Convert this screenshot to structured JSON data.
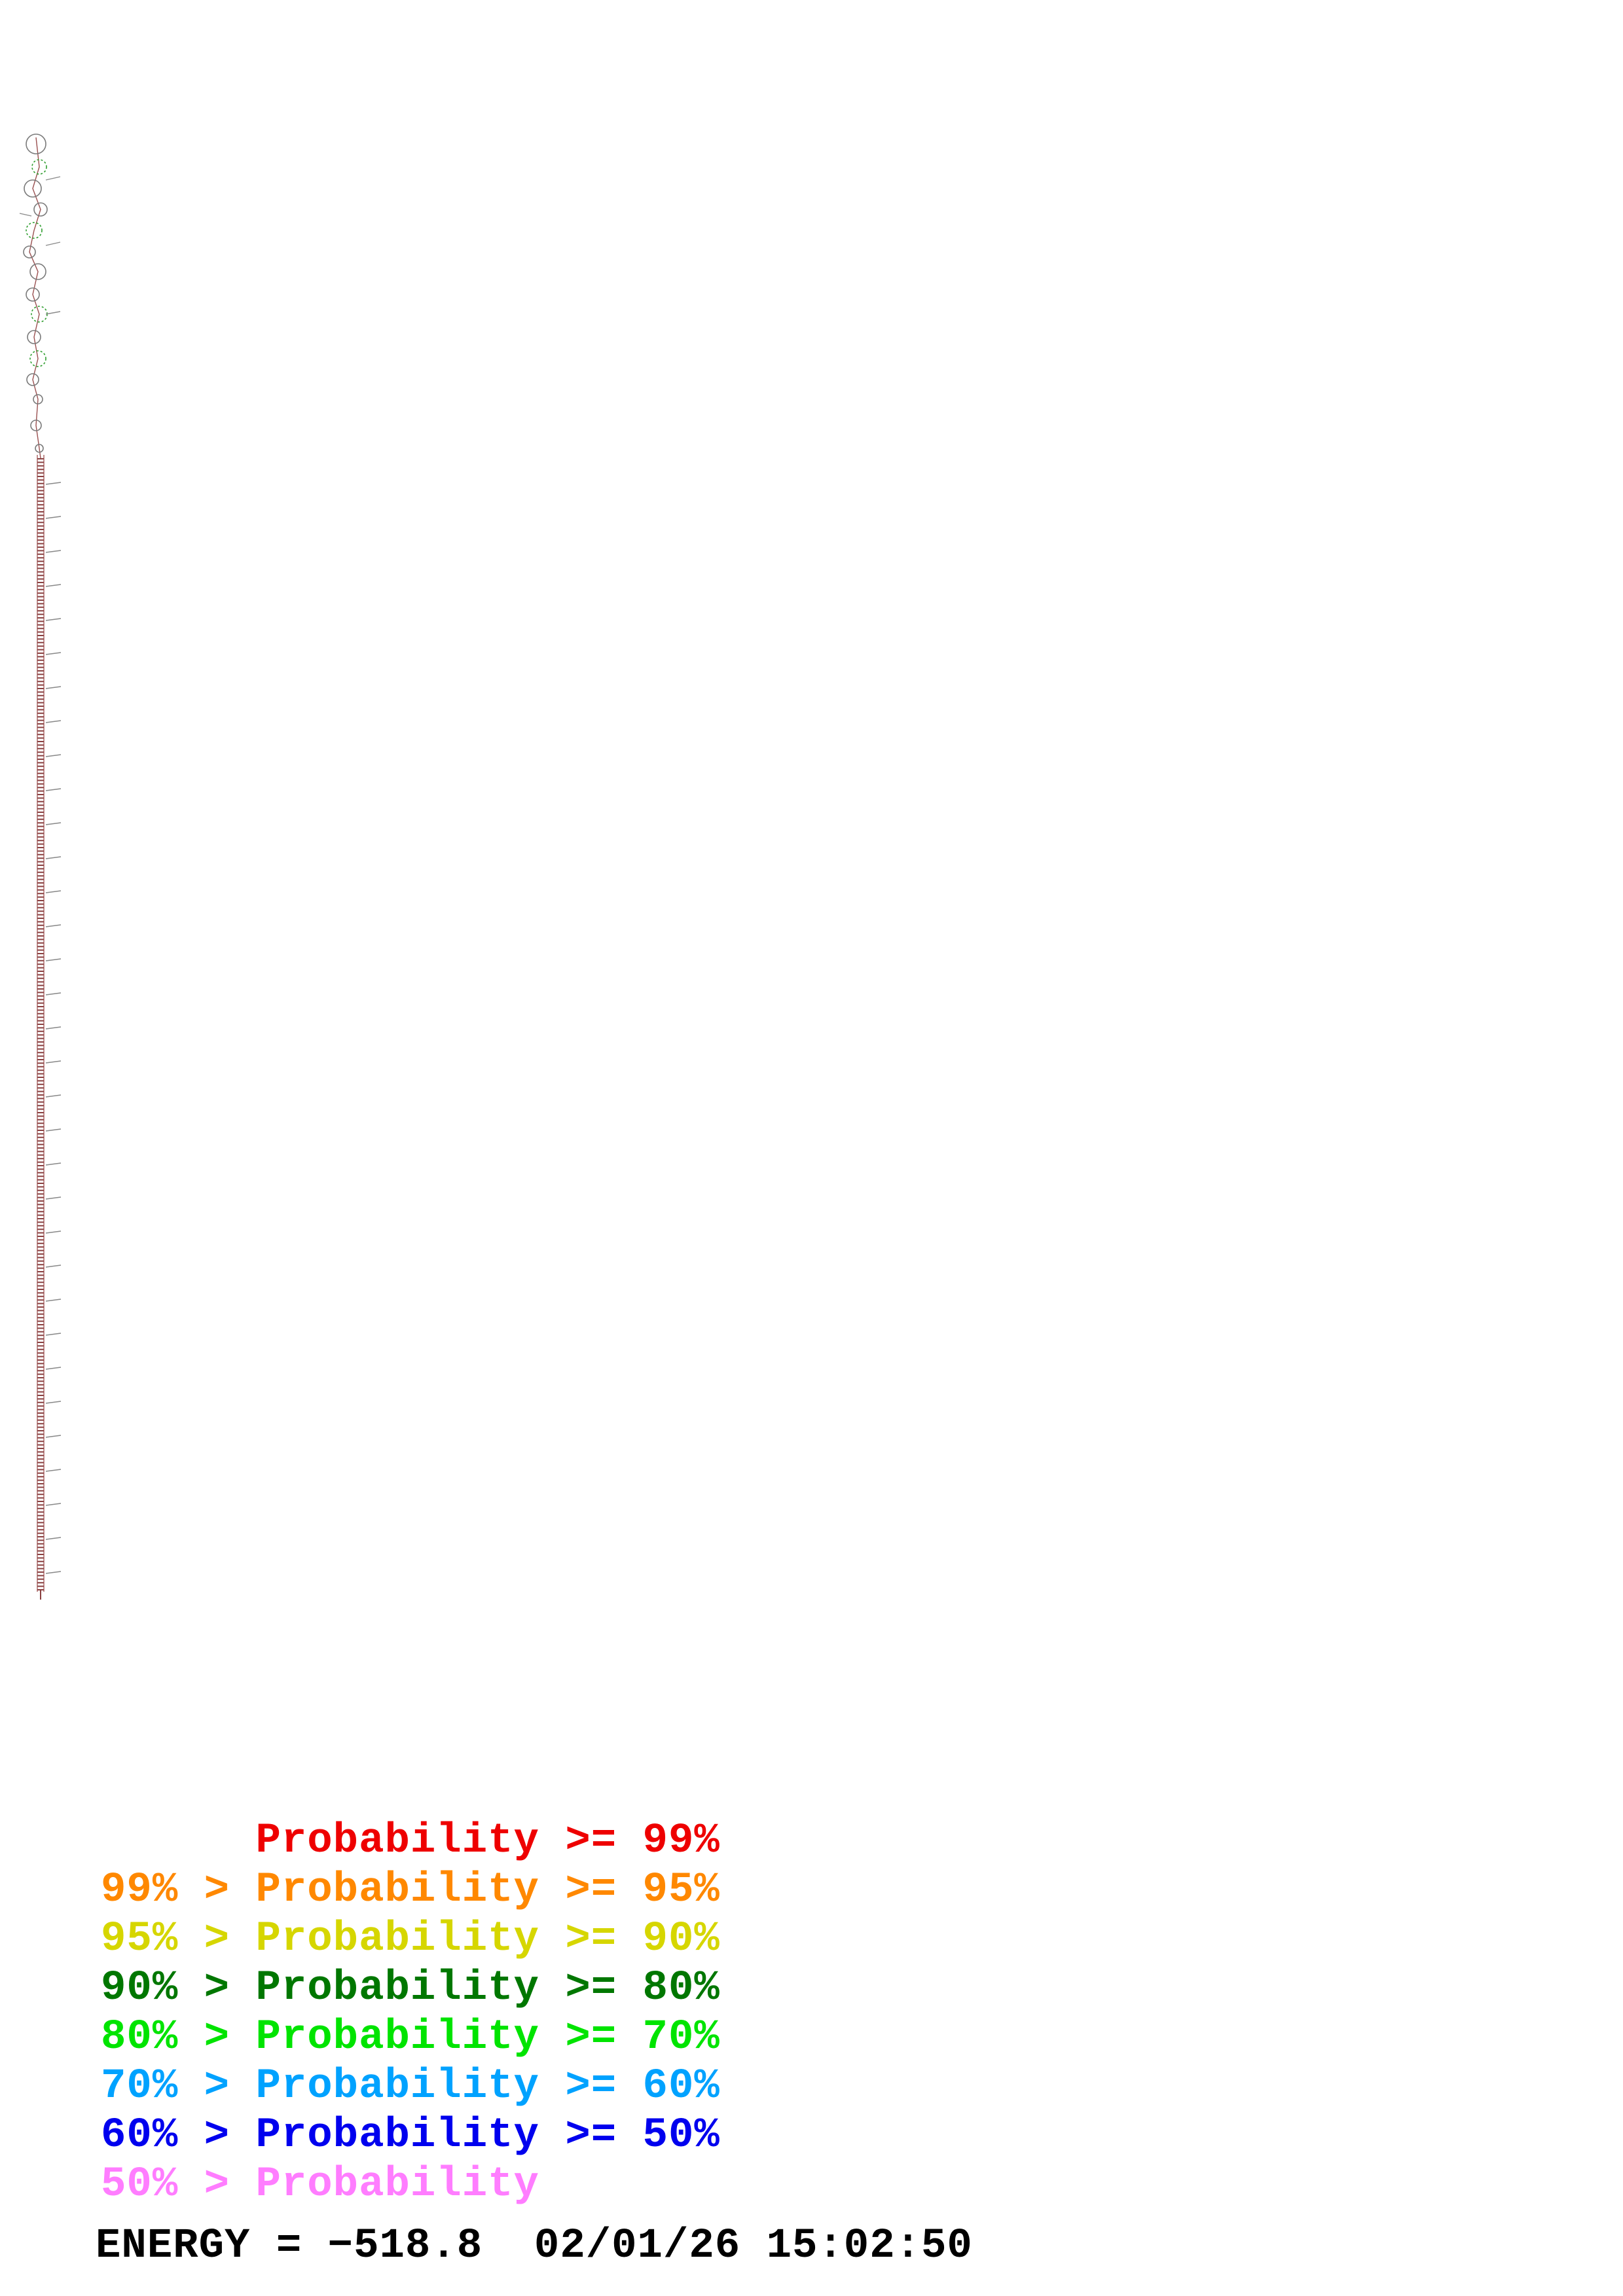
{
  "legend": {
    "items": [
      {
        "text": "      Probability >= 99%",
        "color": "#ee0000"
      },
      {
        "text": "99% > Probability >= 95%",
        "color": "#ff8800"
      },
      {
        "text": "95% > Probability >= 90%",
        "color": "#d6d600"
      },
      {
        "text": "90% > Probability >= 80%",
        "color": "#007700"
      },
      {
        "text": "80% > Probability >= 70%",
        "color": "#00e400"
      },
      {
        "text": "70% > Probability >= 60%",
        "color": "#00a2ff"
      },
      {
        "text": "60% > Probability >= 50%",
        "color": "#0000ee"
      },
      {
        "text": "50% > Probability",
        "color": "#ff7dff"
      }
    ]
  },
  "footer": {
    "energy_text": "ENERGY = −518.8  02/01/26 15:02:50"
  },
  "structure": {
    "description": "RNA secondary structure plot: long vertical helix with terminal loops and bulges at top, sequence tick marks along helix",
    "helix_color": "#8a4040",
    "backbone_color": "#a86060",
    "loop_outline_color": "#7a7a7a",
    "loop_accent_color": "#2f9e2f",
    "tick_color": "#888888"
  }
}
